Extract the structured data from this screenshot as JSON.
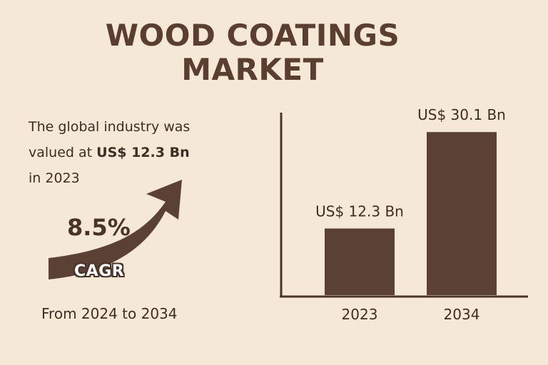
{
  "title": {
    "line1": "WOOD COATINGS",
    "line2": "MARKET"
  },
  "summary": {
    "line1": "The global industry was",
    "line2_prefix": "valued at ",
    "line2_value": "US$ 12.3 Bn",
    "line3": "in 2023"
  },
  "cagr": {
    "value": "8.5%",
    "label": "CAGR",
    "period": "From 2024 to 2034"
  },
  "colors": {
    "background": "#f5e8d6",
    "bar": "#5b4134",
    "axis": "#4a3328",
    "arrow": "#5b4134"
  },
  "chart_data": {
    "type": "bar",
    "categories": [
      "2023",
      "2034"
    ],
    "values": [
      12.3,
      30.1
    ],
    "data_labels": [
      "US$ 12.3 Bn",
      "US$ 30.1 Bn"
    ],
    "title": "",
    "xlabel": "",
    "ylabel": "",
    "ylim": [
      0,
      37.5
    ],
    "grid": false
  }
}
